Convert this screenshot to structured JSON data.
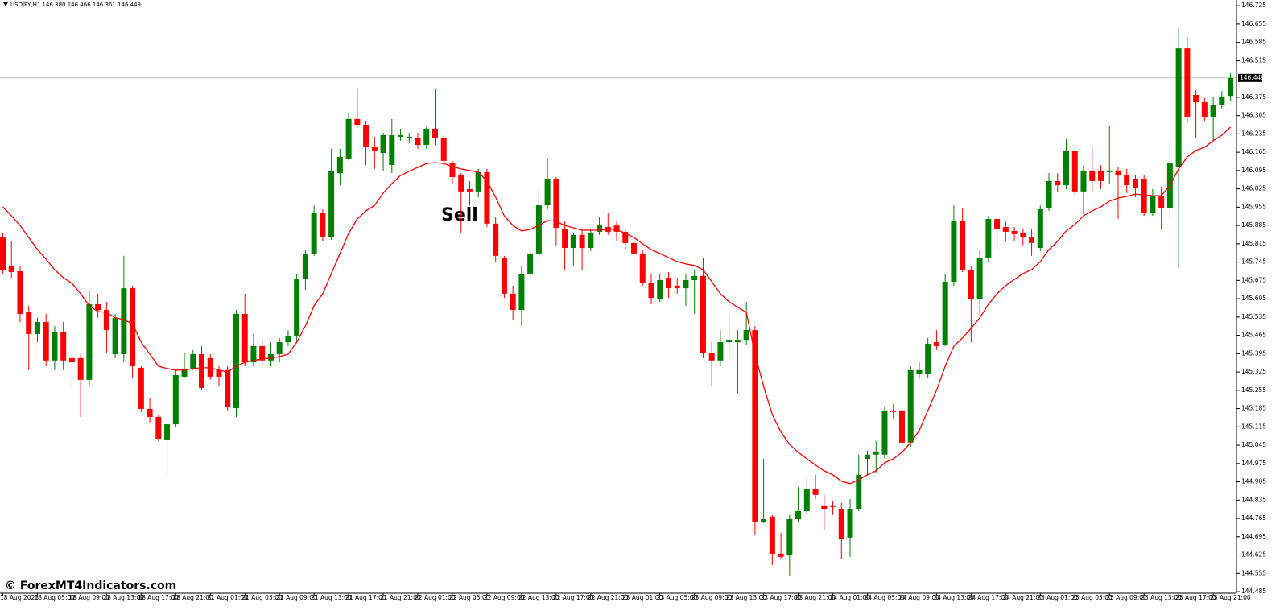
{
  "header": "USDJPY,H1  146.380 146.466 146.361 146.449",
  "watermark": "© ForexMT4Indicators.com",
  "chart_data": {
    "type": "candlestick",
    "annotation": "Sell",
    "categories": [
      "18 Aug 2023",
      null,
      null,
      null,
      "18 Aug 05:00",
      null,
      null,
      null,
      "18 Aug 09:00",
      null,
      null,
      null,
      "18 Aug 13:00",
      null,
      null,
      null,
      "18 Aug 17:00",
      null,
      null,
      null,
      "18 Aug 21:00",
      null,
      null,
      null,
      "21 Aug 01:00",
      null,
      null,
      null,
      "21 Aug 05:00",
      null,
      null,
      null,
      "21 Aug 09:00",
      null,
      null,
      null,
      "21 Aug 13:00",
      null,
      null,
      null,
      "21 Aug 17:00",
      null,
      null,
      null,
      "21 Aug 21:00",
      null,
      null,
      null,
      "22 Aug 01:00",
      null,
      null,
      null,
      "22 Aug 05:00",
      null,
      null,
      null,
      "22 Aug 09:00",
      null,
      null,
      null,
      "22 Aug 13:00",
      null,
      null,
      null,
      "22 Aug 17:00",
      null,
      null,
      null,
      "22 Aug 21:00",
      null,
      null,
      null,
      "23 Aug 01:00",
      null,
      null,
      null,
      "23 Aug 05:00",
      null,
      null,
      null,
      "23 Aug 09:00",
      null,
      null,
      null,
      "23 Aug 13:00",
      null,
      null,
      null,
      "23 Aug 17:00",
      null,
      null,
      null,
      "23 Aug 21:00",
      null,
      null,
      null,
      "24 Aug 01:00",
      null,
      null,
      null,
      "24 Aug 05:00",
      null,
      null,
      null,
      "24 Aug 09:00",
      null,
      null,
      null,
      "24 Aug 13:00",
      null,
      null,
      null,
      "24 Aug 17:00",
      null,
      null,
      null,
      "24 Aug 21:00",
      null,
      null,
      null,
      "25 Aug 01:00",
      null,
      null,
      null,
      "25 Aug 05:00",
      null,
      null,
      null,
      "25 Aug 09:00",
      null,
      null,
      null,
      "25 Aug 13:00",
      null,
      null,
      null,
      "25 Aug 17:00",
      null,
      null,
      null,
      "25 Aug 21:00",
      null,
      null
    ],
    "open": [
      145.839,
      145.732,
      145.71,
      145.553,
      145.47,
      145.516,
      145.369,
      145.479,
      145.378,
      145.378,
      145.295,
      145.584,
      145.562,
      145.393,
      145.393,
      145.645,
      145.341,
      145.184,
      145.153,
      145.067,
      145.125,
      145.307,
      145.338,
      145.393,
      145.378,
      145.332,
      145.332,
      145.187,
      145.547,
      145.362,
      145.424,
      145.369,
      145.393,
      145.439,
      145.461,
      145.679,
      145.775,
      145.932,
      145.839,
      146.085,
      146.141,
      146.292,
      146.27,
      146.187,
      146.162,
      146.116,
      146.224,
      146.218,
      146.218,
      146.193,
      146.255,
      146.218,
      146.125,
      146.076,
      146.024,
      146.015,
      146.089,
      145.892,
      145.762,
      145.624,
      145.562,
      145.701,
      145.778,
      145.962,
      146.064,
      145.87,
      145.799,
      145.849,
      145.799,
      145.861,
      145.879,
      145.885,
      145.861,
      145.818,
      145.778,
      145.664,
      145.602,
      145.685,
      145.655,
      145.645,
      145.676,
      145.692,
      145.399,
      145.369,
      145.439,
      145.439,
      145.448,
      145.485,
      144.753,
      144.772,
      144.63,
      144.624,
      144.762,
      144.793,
      144.876,
      144.815,
      144.815,
      144.802,
      144.692,
      144.802,
      144.993,
      145.009,
      145.009,
      145.178,
      145.178,
      145.055,
      145.316,
      145.316,
      145.439,
      145.43,
      145.67,
      145.901,
      145.716,
      145.602,
      145.762,
      145.91,
      145.879,
      145.864,
      145.858,
      145.839,
      145.799,
      145.953,
      146.055,
      146.039,
      146.169,
      146.015,
      146.095,
      146.095,
      146.089,
      146.095,
      146.076,
      146.064,
      146.064,
      145.932,
      145.999,
      145.953,
      146.107,
      146.562,
      146.384,
      146.356,
      146.301,
      146.344,
      146.38
    ],
    "high": [
      145.855,
      145.824,
      145.732,
      145.578,
      145.532,
      145.547,
      145.501,
      145.516,
      145.409,
      145.393,
      145.633,
      145.624,
      145.593,
      145.547,
      145.769,
      145.655,
      145.347,
      145.224,
      145.162,
      145.147,
      145.332,
      145.399,
      145.409,
      145.424,
      145.393,
      145.347,
      145.347,
      145.562,
      145.624,
      145.47,
      145.448,
      145.439,
      145.455,
      145.485,
      145.701,
      145.793,
      145.962,
      145.947,
      146.178,
      146.178,
      146.316,
      146.409,
      146.285,
      146.224,
      146.239,
      146.292,
      146.255,
      146.239,
      146.239,
      146.261,
      146.409,
      146.23,
      146.132,
      146.085,
      146.055,
      146.101,
      146.101,
      145.916,
      145.769,
      145.655,
      145.732,
      145.793,
      146.024,
      146.138,
      146.07,
      145.901,
      145.855,
      145.87,
      145.87,
      145.916,
      145.932,
      145.901,
      145.87,
      145.839,
      145.793,
      145.701,
      145.701,
      145.707,
      145.685,
      145.701,
      145.716,
      145.762,
      145.439,
      145.485,
      145.541,
      145.485,
      145.593,
      145.501,
      144.993,
      144.778,
      144.71,
      144.778,
      144.885,
      144.916,
      144.932,
      144.855,
      144.833,
      144.824,
      144.839,
      145.009,
      145.024,
      145.061,
      145.193,
      145.202,
      145.193,
      145.347,
      145.362,
      145.455,
      145.485,
      145.701,
      145.962,
      145.953,
      145.732,
      145.793,
      145.922,
      145.916,
      145.901,
      145.879,
      145.87,
      145.87,
      145.962,
      146.085,
      146.085,
      146.215,
      146.178,
      146.116,
      146.184,
      146.116,
      146.264,
      146.107,
      146.101,
      146.076,
      146.076,
      146.024,
      146.033,
      146.209,
      146.639,
      146.602,
      146.402,
      146.372,
      146.378,
      146.399,
      146.466
    ],
    "low": [
      145.701,
      145.685,
      145.516,
      145.332,
      145.439,
      145.347,
      145.332,
      145.332,
      145.27,
      145.153,
      145.27,
      145.532,
      145.399,
      145.378,
      145.362,
      145.301,
      145.172,
      145.132,
      145.061,
      144.932,
      145.116,
      145.301,
      145.332,
      145.255,
      145.295,
      145.27,
      145.178,
      145.153,
      145.347,
      145.347,
      145.347,
      145.347,
      145.362,
      145.424,
      145.439,
      145.639,
      145.769,
      145.824,
      145.83,
      146.039,
      146.132,
      146.261,
      146.116,
      146.101,
      146.095,
      146.085,
      146.209,
      146.199,
      146.178,
      146.178,
      146.193,
      146.116,
      146.045,
      145.855,
      145.962,
      145.993,
      145.879,
      145.747,
      145.608,
      145.522,
      145.501,
      145.685,
      145.762,
      145.947,
      145.809,
      145.716,
      145.732,
      145.716,
      145.787,
      145.849,
      145.849,
      145.824,
      145.793,
      145.769,
      145.655,
      145.584,
      145.593,
      145.608,
      145.624,
      145.578,
      145.547,
      145.378,
      145.27,
      145.347,
      145.378,
      145.245,
      145.43,
      144.701,
      144.747,
      144.587,
      144.609,
      144.547,
      144.753,
      144.778,
      144.839,
      144.722,
      144.778,
      144.609,
      144.618,
      144.793,
      144.932,
      144.941,
      144.993,
      145.147,
      144.947,
      145.039,
      145.301,
      145.301,
      145.409,
      145.424,
      145.655,
      145.707,
      145.439,
      145.547,
      145.747,
      145.793,
      145.824,
      145.824,
      145.809,
      145.769,
      145.787,
      145.941,
      146.015,
      146.024,
      146.002,
      145.922,
      146.015,
      146.024,
      146.045,
      145.91,
      146.009,
      145.993,
      145.922,
      145.922,
      145.87,
      145.91,
      145.722,
      146.279,
      146.218,
      146.285,
      146.209,
      146.332,
      146.361
    ],
    "close": [
      145.716,
      145.707,
      145.547,
      145.47,
      145.516,
      145.369,
      145.479,
      145.369,
      145.362,
      145.295,
      145.584,
      145.562,
      145.485,
      145.532,
      145.645,
      145.347,
      145.184,
      145.153,
      145.07,
      145.125,
      145.313,
      145.338,
      145.393,
      145.264,
      145.307,
      145.307,
      145.193,
      145.547,
      145.362,
      145.424,
      145.369,
      145.393,
      145.439,
      145.461,
      145.679,
      145.775,
      145.932,
      145.839,
      146.095,
      146.147,
      146.292,
      146.27,
      146.187,
      146.172,
      146.23,
      146.23,
      146.23,
      146.224,
      146.193,
      146.255,
      146.218,
      146.132,
      146.07,
      146.015,
      146.015,
      146.089,
      145.892,
      145.769,
      145.624,
      145.562,
      145.701,
      145.778,
      145.962,
      146.064,
      145.876,
      145.799,
      145.849,
      145.799,
      145.855,
      145.885,
      145.861,
      145.861,
      145.818,
      145.778,
      145.664,
      145.608,
      145.676,
      145.645,
      145.645,
      145.676,
      145.692,
      145.399,
      145.369,
      145.439,
      145.448,
      145.448,
      145.485,
      144.753,
      144.762,
      144.63,
      144.618,
      144.762,
      144.793,
      144.876,
      144.855,
      144.802,
      144.809,
      144.685,
      144.802,
      144.932,
      145.009,
      145.018,
      145.178,
      145.172,
      145.055,
      145.332,
      145.332,
      145.433,
      145.424,
      145.67,
      145.901,
      145.716,
      145.602,
      145.762,
      145.91,
      145.87,
      145.861,
      145.852,
      145.839,
      145.818,
      145.947,
      146.055,
      146.039,
      146.169,
      146.015,
      146.095,
      146.055,
      146.055,
      146.095,
      146.076,
      146.039,
      146.03,
      145.932,
      145.999,
      145.953,
      146.122,
      146.562,
      146.301,
      146.356,
      146.301,
      146.344,
      146.378,
      146.449
    ],
    "up_color": "#008000",
    "down_color": "#ff0000",
    "ma": {
      "color": "#ff0000",
      "values": [
        145.956,
        145.922,
        145.885,
        145.839,
        145.793,
        145.756,
        145.716,
        145.685,
        145.664,
        145.624,
        145.578,
        145.556,
        145.553,
        145.532,
        145.525,
        145.51,
        145.439,
        145.393,
        145.347,
        145.338,
        145.332,
        145.332,
        145.338,
        145.341,
        145.341,
        145.332,
        145.325,
        145.347,
        145.362,
        145.369,
        145.375,
        145.378,
        145.384,
        145.393,
        145.439,
        145.501,
        145.578,
        145.624,
        145.701,
        145.778,
        145.855,
        145.91,
        145.941,
        145.962,
        146.009,
        146.045,
        146.076,
        146.092,
        146.107,
        146.122,
        146.125,
        146.122,
        146.11,
        146.101,
        146.095,
        146.089,
        146.055,
        145.993,
        145.922,
        145.885,
        145.864,
        145.87,
        145.885,
        145.904,
        145.901,
        145.885,
        145.876,
        145.867,
        145.867,
        145.867,
        145.87,
        145.87,
        145.855,
        145.839,
        145.815,
        145.793,
        145.778,
        145.762,
        145.747,
        145.738,
        145.732,
        145.716,
        145.67,
        145.624,
        145.593,
        145.572,
        145.553,
        145.393,
        145.27,
        145.162,
        145.095,
        145.048,
        145.018,
        144.993,
        144.969,
        144.947,
        144.932,
        144.907,
        144.898,
        144.913,
        144.932,
        144.947,
        144.978,
        144.993,
        145.018,
        145.055,
        145.101,
        145.178,
        145.255,
        145.347,
        145.424,
        145.455,
        145.492,
        145.532,
        145.584,
        145.624,
        145.655,
        145.679,
        145.701,
        145.716,
        145.747,
        145.793,
        145.824,
        145.864,
        145.889,
        145.922,
        145.941,
        145.956,
        145.978,
        145.99,
        145.996,
        146.005,
        146.002,
        145.999,
        145.999,
        146.039,
        146.101,
        146.147,
        146.172,
        146.184,
        146.209,
        146.23,
        146.261
      ]
    },
    "ylim": [
      144.479,
      146.747
    ],
    "yticks": [
      146.725,
      146.655,
      146.585,
      146.515,
      146.375,
      146.305,
      146.235,
      146.165,
      146.095,
      146.025,
      145.955,
      145.885,
      145.815,
      145.745,
      145.675,
      145.605,
      145.535,
      145.465,
      145.395,
      145.325,
      145.255,
      145.185,
      145.115,
      145.045,
      144.975,
      144.905,
      144.835,
      144.765,
      144.695,
      144.625,
      144.555,
      144.485
    ],
    "current_price": 146.449
  }
}
